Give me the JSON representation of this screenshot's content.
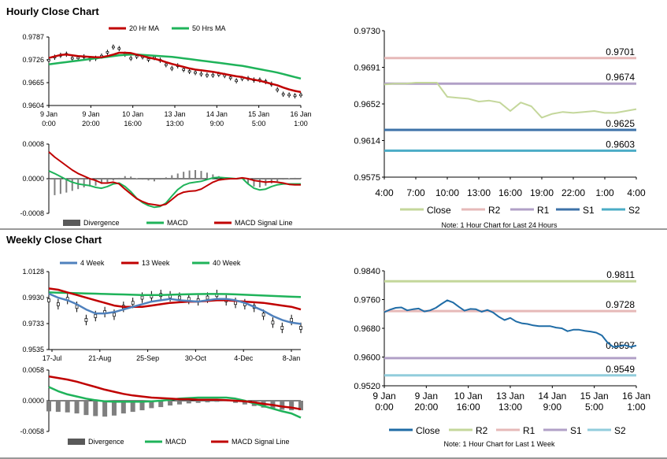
{
  "sections": {
    "hourly_title": "Hourly Close Chart",
    "weekly_title": "Weekly Close Chart"
  },
  "colors": {
    "red": "#c00000",
    "green": "#1fb35a",
    "blue": "#4f81bd",
    "gray": "#595959",
    "close_light": "#c4d79b",
    "close_dark": "#1f6ca6",
    "r2_pink": "#e6b9b8",
    "r2_light": "#c4d79b",
    "r1_purple": "#b1a0c7",
    "s1_blue": "#3d72a8",
    "s2_teal": "#4bacc6",
    "r1_pink": "#e6b9b8",
    "s1_lav": "#b1a0c7",
    "s2_light": "#92cddc"
  },
  "chart_data": [
    {
      "id": "hourly_price",
      "type": "line",
      "legend": [
        "20 Hr MA",
        "50 Hrs MA"
      ],
      "ylim": [
        0.9604,
        0.9787
      ],
      "yticks": [
        "0.9787",
        "0.9726",
        "0.9665",
        "0.9604"
      ],
      "xticks": [
        [
          "9 Jan",
          "0:00"
        ],
        [
          "9 Jan",
          "20:00"
        ],
        [
          "10 Jan",
          "16:00"
        ],
        [
          "13 Jan",
          "13:00"
        ],
        [
          "14 Jan",
          "9:00"
        ],
        [
          "15 Jan",
          "5:00"
        ],
        [
          "16 Jan",
          "1:00"
        ]
      ],
      "series": [
        {
          "name": "Close",
          "values": [
            0.9725,
            0.9733,
            0.9738,
            0.9741,
            0.973,
            0.9731,
            0.9734,
            0.9728,
            0.973,
            0.9736,
            0.9746,
            0.976,
            0.9756,
            0.9741,
            0.973,
            0.9735,
            0.9734,
            0.9727,
            0.9732,
            0.9725,
            0.9713,
            0.9703,
            0.971,
            0.97,
            0.9695,
            0.9692,
            0.9688,
            0.9685,
            0.9685,
            0.9687,
            0.9684,
            0.9678,
            0.967,
            0.9676,
            0.9676,
            0.9672,
            0.9672,
            0.9668,
            0.9661,
            0.9646,
            0.9634,
            0.9632,
            0.963,
            0.9632
          ]
        },
        {
          "name": "20 Hr MA",
          "values": [
            0.9731,
            0.9735,
            0.9739,
            0.974,
            0.9738,
            0.9736,
            0.9735,
            0.9734,
            0.9733,
            0.9733,
            0.9736,
            0.974,
            0.9745,
            0.9745,
            0.9744,
            0.974,
            0.9736,
            0.9732,
            0.9729,
            0.9725,
            0.972,
            0.9715,
            0.9711,
            0.9707,
            0.9703,
            0.97,
            0.9698,
            0.9696,
            0.9694,
            0.9691,
            0.9688,
            0.9685,
            0.9682,
            0.968,
            0.9676,
            0.9673,
            0.967,
            0.9666,
            0.9662,
            0.9658,
            0.9652,
            0.9647,
            0.9643,
            0.964
          ]
        },
        {
          "name": "50 Hrs MA",
          "values": [
            0.9714,
            0.9716,
            0.9718,
            0.972,
            0.9722,
            0.9724,
            0.9726,
            0.9728,
            0.973,
            0.9732,
            0.9734,
            0.9736,
            0.9738,
            0.9739,
            0.974,
            0.974,
            0.9739,
            0.9738,
            0.9737,
            0.9736,
            0.9735,
            0.9734,
            0.9732,
            0.973,
            0.9728,
            0.9726,
            0.9724,
            0.9722,
            0.972,
            0.9718,
            0.9716,
            0.9714,
            0.9712,
            0.971,
            0.9707,
            0.9704,
            0.9701,
            0.9698,
            0.9695,
            0.9692,
            0.9688,
            0.9684,
            0.968,
            0.9676
          ]
        }
      ]
    },
    {
      "id": "hourly_macd",
      "type": "line",
      "legend": [
        "Divergence",
        "MACD",
        "MACD Signal Line"
      ],
      "ylim": [
        -0.0008,
        0.0008
      ],
      "yticks": [
        "0.0008",
        "0.0000",
        "-0.0008"
      ],
      "series": [
        {
          "name": "Divergence",
          "values": [
            -0.0004,
            -0.00038,
            -0.00035,
            -0.00032,
            -0.00028,
            -0.00024,
            -0.0002,
            -0.00018,
            -0.00016,
            -0.00012,
            -8e-05,
            -4e-05,
            2e-05,
            6e-05,
            5e-05,
            1e-05,
            -2e-05,
            -4e-05,
            -6e-05,
            -2e-05,
            3e-05,
            8e-05,
            0.00012,
            0.00016,
            0.00019,
            0.0002,
            0.00018,
            0.00014,
            0.0001,
            6e-05,
            3e-05,
            1e-05,
            0.0,
            -1e-05,
            -0.00012,
            -0.00018,
            -0.0002,
            -0.00016,
            -0.00011,
            -6e-05,
            -2e-05,
            1e-05,
            2e-05,
            2e-05
          ]
        },
        {
          "name": "MACD",
          "values": [
            0.00018,
            0.00012,
            5e-05,
            -2e-05,
            -8e-05,
            -0.00012,
            -0.00014,
            -0.00016,
            -0.0002,
            -0.00022,
            -0.00018,
            -0.00012,
            -0.0001,
            -0.00018,
            -0.0003,
            -0.00045,
            -0.00055,
            -0.00062,
            -0.00066,
            -0.00064,
            -0.00056,
            -0.0004,
            -0.00025,
            -0.00015,
            -0.0001,
            -8e-05,
            -6e-05,
            -2e-05,
            2e-05,
            3e-05,
            2e-05,
            1e-05,
            0.0,
            1e-05,
            -0.00012,
            -0.00022,
            -0.00026,
            -0.00024,
            -0.00018,
            -0.00014,
            -0.00012,
            -0.00012,
            -0.00012,
            -0.00012
          ]
        },
        {
          "name": "MACD Signal Line",
          "values": [
            0.00062,
            0.0005,
            0.0004,
            0.0003,
            0.0002,
            0.00012,
            6e-05,
            0.0,
            -4e-05,
            -0.0001,
            -0.0001,
            -8e-05,
            -0.00012,
            -0.00024,
            -0.00035,
            -0.00046,
            -0.00053,
            -0.00058,
            -0.0006,
            -0.00062,
            -0.00059,
            -0.00048,
            -0.00037,
            -0.00031,
            -0.00029,
            -0.00028,
            -0.00024,
            -0.00016,
            -8e-05,
            -3e-05,
            -1e-05,
            0.0,
            0.0,
            2e-05,
            0.0,
            -4e-05,
            -6e-05,
            -8e-05,
            -7e-05,
            -8e-05,
            -0.0001,
            -0.00013,
            -0.00014,
            -0.00014
          ]
        }
      ]
    },
    {
      "id": "hourly_levels",
      "type": "line",
      "legend": [
        "Close",
        "R2",
        "R1",
        "S1",
        "S2"
      ],
      "note": "Note: 1 Hour Chart for Last 24 Hours",
      "ylim": [
        0.9575,
        0.973
      ],
      "yticks": [
        "0.9730",
        "0.9691",
        "0.9652",
        "0.9614",
        "0.9575"
      ],
      "xticks": [
        "4:00",
        "7:00",
        "10:00",
        "13:00",
        "16:00",
        "19:00",
        "22:00",
        "1:00",
        "4:00"
      ],
      "x": [
        0,
        1,
        2,
        3,
        4,
        5,
        6,
        7,
        8,
        9,
        10,
        11,
        12,
        13,
        14,
        15,
        16,
        17,
        18,
        19,
        20,
        21,
        22,
        23,
        24
      ],
      "close": [
        0.9673,
        0.9674,
        0.9674,
        0.9675,
        0.9675,
        0.9675,
        0.966,
        0.9659,
        0.9658,
        0.9655,
        0.9656,
        0.9654,
        0.9645,
        0.9654,
        0.965,
        0.9638,
        0.9642,
        0.9644,
        0.9643,
        0.9644,
        0.9645,
        0.9643,
        0.9643,
        0.9645,
        0.9647
      ],
      "levels": [
        {
          "name": "R2",
          "value": 0.9701,
          "label": "0.9701"
        },
        {
          "name": "R1",
          "value": 0.9674,
          "label": "0.9674"
        },
        {
          "name": "S1",
          "value": 0.9625,
          "label": "0.9625"
        },
        {
          "name": "S2",
          "value": 0.9603,
          "label": "0.9603"
        }
      ]
    },
    {
      "id": "weekly_price",
      "type": "line",
      "legend": [
        "4 Week",
        "13 Week",
        "40 Week"
      ],
      "ylim": [
        0.9535,
        1.0128
      ],
      "yticks": [
        "1.0128",
        "0.9930",
        "0.9733",
        "0.9535"
      ],
      "xticks": [
        "17-Jul",
        "21-Aug",
        "25-Sep",
        "30-Oct",
        "4-Dec",
        "8-Jan"
      ],
      "series": [
        {
          "name": "Close",
          "values": [
            0.991,
            0.988,
            0.992,
            0.986,
            0.976,
            0.979,
            0.982,
            0.98,
            0.986,
            0.989,
            0.993,
            0.994,
            0.995,
            0.994,
            0.993,
            0.992,
            0.991,
            0.993,
            0.995,
            0.991,
            0.989,
            0.988,
            0.986,
            0.98,
            0.974,
            0.97,
            0.976,
            0.97
          ]
        },
        {
          "name": "4 Week",
          "values": [
            0.996,
            0.993,
            0.991,
            0.988,
            0.984,
            0.981,
            0.981,
            0.982,
            0.984,
            0.986,
            0.988,
            0.99,
            0.991,
            0.992,
            0.991,
            0.9905,
            0.99,
            0.991,
            0.992,
            0.992,
            0.991,
            0.989,
            0.986,
            0.983,
            0.979,
            0.976,
            0.974,
            0.973
          ]
        },
        {
          "name": "13 Week",
          "values": [
            1.0,
            0.999,
            0.997,
            0.995,
            0.993,
            0.991,
            0.989,
            0.987,
            0.986,
            0.986,
            0.986,
            0.987,
            0.988,
            0.989,
            0.9895,
            0.99,
            0.99,
            0.9905,
            0.991,
            0.991,
            0.9905,
            0.99,
            0.9895,
            0.989,
            0.988,
            0.987,
            0.986,
            0.984
          ]
        },
        {
          "name": "40 Week",
          "values": [
            0.997,
            0.9968,
            0.9966,
            0.9964,
            0.9962,
            0.996,
            0.9958,
            0.9956,
            0.9954,
            0.9952,
            0.995,
            0.995,
            0.995,
            0.9952,
            0.9954,
            0.9956,
            0.9957,
            0.9958,
            0.9958,
            0.9957,
            0.9955,
            0.9952,
            0.9949,
            0.9946,
            0.9943,
            0.994,
            0.9937,
            0.9935
          ]
        }
      ]
    },
    {
      "id": "weekly_macd",
      "type": "line",
      "legend": [
        "Divergence",
        "MACD",
        "MACD Signal Line"
      ],
      "ylim": [
        -0.0058,
        0.0058
      ],
      "yticks": [
        "0.0058",
        "0.0000",
        "-0.0058"
      ],
      "series": [
        {
          "name": "Divergence",
          "values": [
            -0.002,
            -0.0021,
            -0.0022,
            -0.0024,
            -0.0027,
            -0.0029,
            -0.003,
            -0.0028,
            -0.0024,
            -0.0021,
            -0.0018,
            -0.0014,
            -0.0012,
            -0.0009,
            -0.0007,
            -0.0005,
            -0.0004,
            -0.0003,
            -0.0002,
            -0.0001,
            -0.0004,
            -0.0007,
            -0.001,
            -0.0013,
            -0.0015,
            -0.0017,
            -0.0018,
            -0.0018
          ]
        },
        {
          "name": "MACD",
          "values": [
            0.0026,
            0.0018,
            0.0012,
            0.0008,
            0.0004,
            0.0001,
            -0.0001,
            -0.0002,
            -0.0002,
            -0.0002,
            -0.0002,
            -0.0001,
            0.0,
            0.0002,
            0.0004,
            0.0005,
            0.0006,
            0.0006,
            0.0006,
            0.0006,
            0.0004,
            0.0,
            -0.0005,
            -0.001,
            -0.0015,
            -0.002,
            -0.0024,
            -0.0032
          ]
        },
        {
          "name": "MACD Signal Line",
          "values": [
            0.0046,
            0.0043,
            0.004,
            0.0036,
            0.0031,
            0.0026,
            0.0021,
            0.0017,
            0.0013,
            0.001,
            0.0008,
            0.0006,
            0.0005,
            0.0004,
            0.0003,
            0.0003,
            0.0002,
            0.0002,
            0.0002,
            0.0001,
            0.0,
            -0.0001,
            -0.0003,
            -0.0006,
            -0.0008,
            -0.0011,
            -0.0013,
            -0.0016
          ]
        }
      ]
    },
    {
      "id": "weekly_levels",
      "type": "line",
      "legend": [
        "Close",
        "R2",
        "R1",
        "S1",
        "S2"
      ],
      "note": "Note: 1 Hour Chart for Last 1 Week",
      "ylim": [
        0.952,
        0.984
      ],
      "yticks": [
        "0.9840",
        "0.9760",
        "0.9680",
        "0.9600",
        "0.9520"
      ],
      "xticks": [
        [
          "9 Jan",
          "0:00"
        ],
        [
          "9 Jan",
          "20:00"
        ],
        [
          "10 Jan",
          "16:00"
        ],
        [
          "13 Jan",
          "13:00"
        ],
        [
          "14 Jan",
          "9:00"
        ],
        [
          "15 Jan",
          "5:00"
        ],
        [
          "16 Jan",
          "1:00"
        ]
      ],
      "close": [
        0.9725,
        0.9732,
        0.9737,
        0.9738,
        0.973,
        0.9733,
        0.9735,
        0.9727,
        0.973,
        0.9737,
        0.9748,
        0.9758,
        0.9752,
        0.974,
        0.9729,
        0.9734,
        0.9733,
        0.9726,
        0.9731,
        0.9724,
        0.9712,
        0.9703,
        0.9709,
        0.9699,
        0.9694,
        0.9692,
        0.9688,
        0.9686,
        0.9686,
        0.9686,
        0.9682,
        0.968,
        0.9672,
        0.9676,
        0.9676,
        0.9673,
        0.9671,
        0.9668,
        0.966,
        0.964,
        0.9628,
        0.963,
        0.9633,
        0.9628,
        0.9632
      ],
      "levels": [
        {
          "name": "R2",
          "value": 0.9811,
          "label": "0.9811"
        },
        {
          "name": "R1",
          "value": 0.9728,
          "label": "0.9728"
        },
        {
          "name": "S1",
          "value": 0.9597,
          "label": "0.9597"
        },
        {
          "name": "S2",
          "value": 0.9549,
          "label": "0.9549"
        }
      ]
    }
  ]
}
